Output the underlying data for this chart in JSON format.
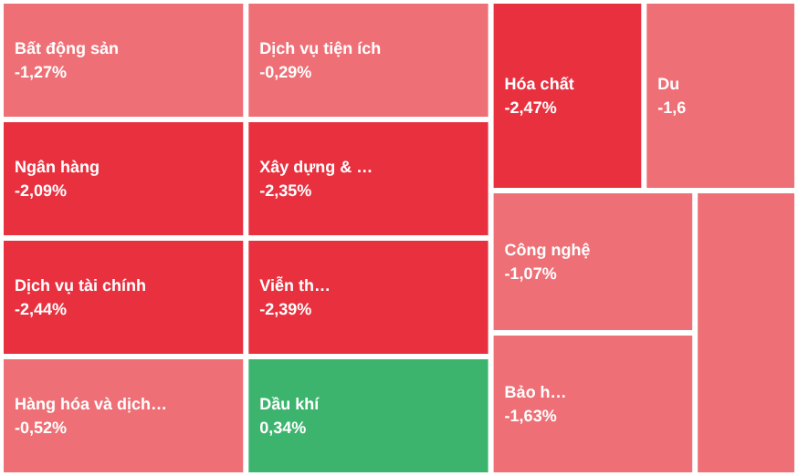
{
  "chart_data": {
    "type": "other",
    "categories": [
      "Bất động sản",
      "Ngân hàng",
      "Dịch vụ tài chính",
      "Hàng hóa và dịch…",
      "Dịch vụ tiện ích",
      "Xây dựng & …",
      "Viễn th…",
      "Dầu khí",
      "Hóa chất",
      "Du",
      "Công nghệ",
      "Bảo h…",
      null
    ],
    "values": [
      -1.27,
      -2.09,
      -2.44,
      -0.52,
      -0.29,
      -2.35,
      -2.39,
      0.34,
      -2.47,
      null,
      -1.07,
      -1.63,
      null
    ],
    "value_labels": [
      "-1,27%",
      "-2,09%",
      "-2,44%",
      "-0,52%",
      "-0,29%",
      "-2,35%",
      "-2,39%",
      "0,34%",
      "-2,47%",
      "-1,6",
      "-1,07%",
      "-1,63%",
      null
    ]
  }
}
